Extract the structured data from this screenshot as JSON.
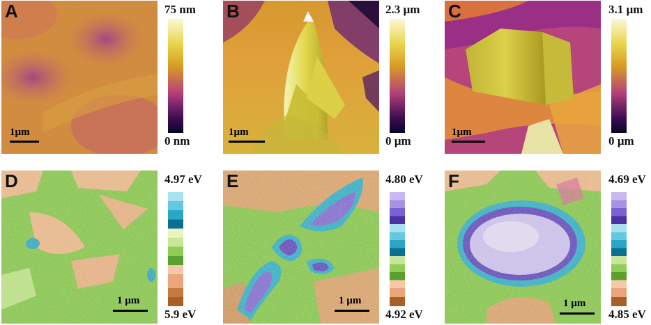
{
  "panels": [
    {
      "letter": "A",
      "scale_label": "1µm",
      "colorbar": {
        "max": "75 nm",
        "min": "0 nm"
      }
    },
    {
      "letter": "B",
      "scale_label": "1µm",
      "colorbar": {
        "max": "2.3 µm",
        "min": "0 µm"
      }
    },
    {
      "letter": "C",
      "scale_label": "1µm",
      "colorbar": {
        "max": "3.1 µm",
        "min": "0 µm"
      }
    },
    {
      "letter": "D",
      "scale_label": "1 µm",
      "colorbar": {
        "max": "4.97 eV",
        "min": "5.9 eV"
      }
    },
    {
      "letter": "E",
      "scale_label": "1 µm",
      "colorbar": {
        "max": "4.80 eV",
        "min": "4.92 eV"
      }
    },
    {
      "letter": "F",
      "scale_label": "1 µm",
      "colorbar": {
        "max": "4.69 eV",
        "min": "4.85 eV"
      }
    }
  ],
  "colors": {
    "height_gradient": [
      "#fbf7d8",
      "#e8d64a",
      "#d79a25",
      "#b5407a",
      "#3c0d54",
      "#0a0425"
    ],
    "kpfm_scale": [
      "#a9e2ee",
      "#63c9e0",
      "#2aa6c7",
      "#0a6f91",
      "#eaf5c0",
      "#c9e79a",
      "#8fcd57",
      "#5aa02d",
      "#f5c8a9",
      "#eaa57c",
      "#c57b3e",
      "#a85f28"
    ],
    "kpfm_scale_e": [
      "#c9b9ef",
      "#a892e6",
      "#7c61d2",
      "#4a32a6",
      "#a9e2ee",
      "#63c9e0",
      "#2aa6c7",
      "#0a6f91",
      "#c9e79a",
      "#8fcd57",
      "#5aa02d",
      "#f5c8a9",
      "#eaa57c",
      "#a85f28"
    ]
  }
}
